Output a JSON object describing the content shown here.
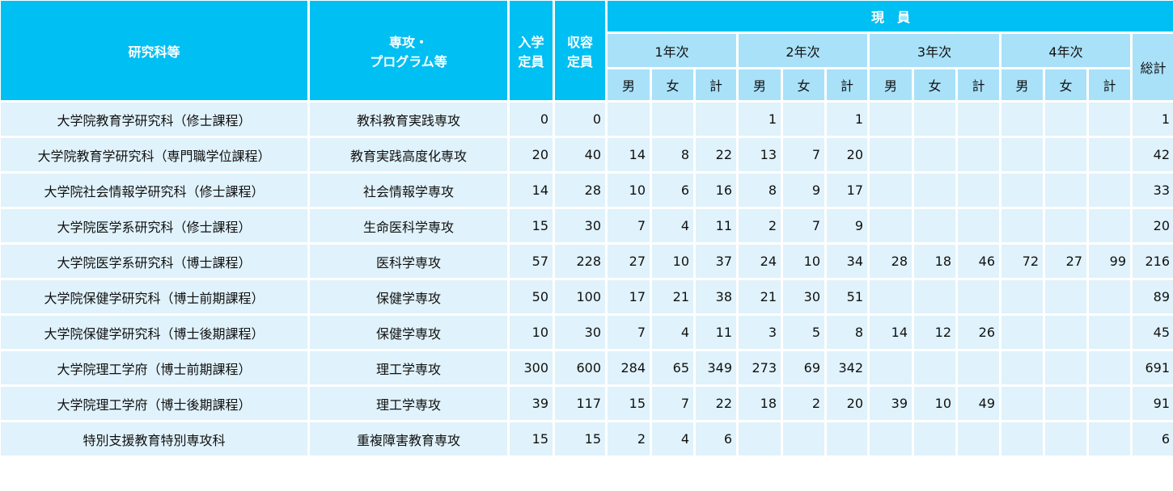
{
  "colors": {
    "header": "#00bff2",
    "subheader": "#a9e1f9",
    "row": "#e0f2fb"
  },
  "header": {
    "department": "研究科等",
    "major_line1": "専攻・",
    "major_line2": "プログラム等",
    "admission_line1": "入学",
    "admission_line2": "定員",
    "capacity_line1": "収容",
    "capacity_line2": "定員",
    "current": "現　員",
    "years": [
      "1年次",
      "2年次",
      "3年次",
      "4年次"
    ],
    "male": "男",
    "female": "女",
    "subtotal": "計",
    "total": "総計"
  },
  "rows": [
    {
      "department": "大学院教育学研究科（修士課程）",
      "major": "教科教育実践専攻",
      "admission": "0",
      "capacity": "0",
      "values": [
        "",
        "",
        "",
        "1",
        "",
        "1",
        "",
        "",
        "",
        "",
        "",
        ""
      ],
      "total": "1"
    },
    {
      "department": "大学院教育学研究科（専門職学位課程）",
      "major": "教育実践高度化専攻",
      "admission": "20",
      "capacity": "40",
      "values": [
        "14",
        "8",
        "22",
        "13",
        "7",
        "20",
        "",
        "",
        "",
        "",
        "",
        ""
      ],
      "total": "42"
    },
    {
      "department": "大学院社会情報学研究科（修士課程）",
      "major": "社会情報学専攻",
      "admission": "14",
      "capacity": "28",
      "values": [
        "10",
        "6",
        "16",
        "8",
        "9",
        "17",
        "",
        "",
        "",
        "",
        "",
        ""
      ],
      "total": "33"
    },
    {
      "department": "大学院医学系研究科（修士課程）",
      "major": "生命医科学専攻",
      "admission": "15",
      "capacity": "30",
      "values": [
        "7",
        "4",
        "11",
        "2",
        "7",
        "9",
        "",
        "",
        "",
        "",
        "",
        ""
      ],
      "total": "20"
    },
    {
      "department": "大学院医学系研究科（博士課程）",
      "major": "医科学専攻",
      "admission": "57",
      "capacity": "228",
      "values": [
        "27",
        "10",
        "37",
        "24",
        "10",
        "34",
        "28",
        "18",
        "46",
        "72",
        "27",
        "99"
      ],
      "total": "216"
    },
    {
      "department": "大学院保健学研究科（博士前期課程）",
      "major": "保健学専攻",
      "admission": "50",
      "capacity": "100",
      "values": [
        "17",
        "21",
        "38",
        "21",
        "30",
        "51",
        "",
        "",
        "",
        "",
        "",
        ""
      ],
      "total": "89"
    },
    {
      "department": "大学院保健学研究科（博士後期課程）",
      "major": "保健学専攻",
      "admission": "10",
      "capacity": "30",
      "values": [
        "7",
        "4",
        "11",
        "3",
        "5",
        "8",
        "14",
        "12",
        "26",
        "",
        "",
        ""
      ],
      "total": "45"
    },
    {
      "department": "大学院理工学府（博士前期課程）",
      "major": "理工学専攻",
      "admission": "300",
      "capacity": "600",
      "values": [
        "284",
        "65",
        "349",
        "273",
        "69",
        "342",
        "",
        "",
        "",
        "",
        "",
        ""
      ],
      "total": "691"
    },
    {
      "department": "大学院理工学府（博士後期課程）",
      "major": "理工学専攻",
      "admission": "39",
      "capacity": "117",
      "values": [
        "15",
        "7",
        "22",
        "18",
        "2",
        "20",
        "39",
        "10",
        "49",
        "",
        "",
        ""
      ],
      "total": "91"
    },
    {
      "department": "特別支援教育特別専攻科",
      "major": "重複障害教育専攻",
      "admission": "15",
      "capacity": "15",
      "values": [
        "2",
        "4",
        "6",
        "",
        "",
        "",
        "",
        "",
        "",
        "",
        "",
        ""
      ],
      "total": "6"
    }
  ]
}
